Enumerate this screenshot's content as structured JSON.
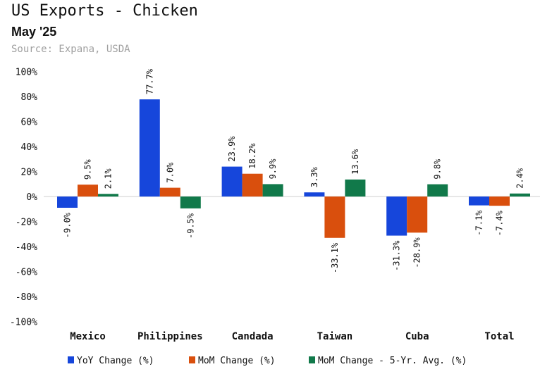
{
  "header": {
    "title": "US Exports - Chicken",
    "subtitle": "May '25",
    "source": "Source: Expana, USDA"
  },
  "colors": {
    "yoy": "#1646db",
    "mom": "#d94f0d",
    "mom5": "#11794a"
  },
  "chart_data": {
    "type": "bar",
    "title": "US Exports - Chicken",
    "subtitle": "May '25",
    "categories": [
      "Mexico",
      "Philippines",
      "Candada",
      "Taiwan",
      "Cuba",
      "Total"
    ],
    "series": [
      {
        "name": "YoY Change (%)",
        "values": [
          -9.0,
          77.7,
          23.9,
          3.3,
          -31.3,
          -7.1
        ]
      },
      {
        "name": "MoM Change (%)",
        "values": [
          9.5,
          7.0,
          18.2,
          -33.1,
          -28.9,
          -7.4
        ]
      },
      {
        "name": "MoM Change - 5-Yr. Avg. (%)",
        "values": [
          2.1,
          -9.5,
          9.9,
          13.6,
          9.8,
          2.4
        ]
      }
    ],
    "ylim": [
      -100,
      100
    ],
    "yticks": [
      100,
      80,
      60,
      40,
      20,
      0,
      -20,
      -40,
      -60,
      -80,
      -100
    ],
    "ytick_labels": [
      "100%",
      "80%",
      "60%",
      "40%",
      "20%",
      "0%",
      "-20%",
      "-40%",
      "-60%",
      "-80%",
      "-100%"
    ],
    "xlabel": "",
    "ylabel": "",
    "grid": false,
    "legend_position": "bottom"
  }
}
